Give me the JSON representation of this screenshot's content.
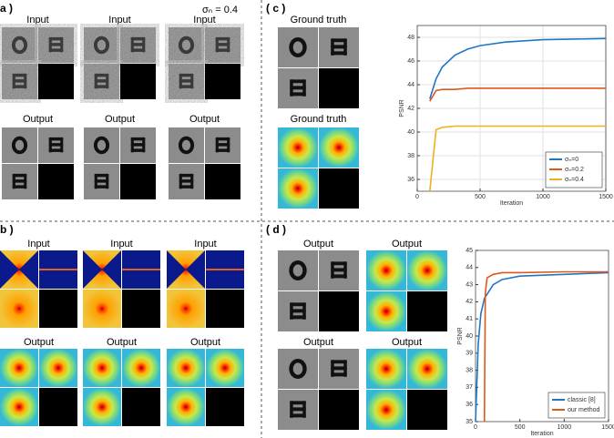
{
  "panels": [
    {
      "label": "a )",
      "note": "σₙ = 0.4",
      "top_titles": [
        "Input",
        "Input",
        "Input"
      ],
      "bottom_titles": [
        "Output",
        "Output",
        "Output"
      ]
    },
    {
      "label": "b )",
      "top_titles": [
        "Input",
        "Input",
        "Input"
      ],
      "bottom_titles": [
        "Output",
        "Output",
        "Output"
      ]
    },
    {
      "label": "( c )",
      "top_titles": [
        "Ground truth"
      ],
      "bottom_titles": [
        "Ground truth"
      ]
    },
    {
      "label": "( d )",
      "top_titles": [
        "Output",
        "Output"
      ],
      "bottom_titles": [
        "Output",
        "Output"
      ]
    }
  ],
  "chart_data": [
    {
      "type": "line",
      "xlabel": "Iteration",
      "ylabel": "PSNR",
      "xlim": [
        0,
        1500
      ],
      "xticks": [
        0,
        500,
        1000,
        1500
      ],
      "ylim": [
        35,
        49
      ],
      "yticks": [
        36,
        38,
        40,
        42,
        44,
        46,
        48
      ],
      "grid": true,
      "legend": "lower right",
      "series": [
        {
          "name": "σₙ=0",
          "color": "#1f77c4",
          "x": [
            100,
            150,
            200,
            300,
            400,
            500,
            700,
            1000,
            1500
          ],
          "values": [
            42.8,
            44.5,
            45.5,
            46.5,
            47.0,
            47.3,
            47.6,
            47.8,
            47.9
          ]
        },
        {
          "name": "σₙ=0.2",
          "color": "#e0561c",
          "x": [
            100,
            150,
            200,
            300,
            400,
            500,
            700,
            1000,
            1500
          ],
          "values": [
            42.6,
            43.5,
            43.6,
            43.6,
            43.7,
            43.7,
            43.7,
            43.7,
            43.7
          ]
        },
        {
          "name": "σₙ=0.4",
          "color": "#edb120",
          "x": [
            100,
            150,
            200,
            300,
            400,
            500,
            700,
            1000,
            1500
          ],
          "values": [
            35,
            40.2,
            40.4,
            40.5,
            40.5,
            40.5,
            40.5,
            40.5,
            40.5
          ]
        }
      ]
    },
    {
      "type": "line",
      "xlabel": "Iteration",
      "ylabel": "PSNR",
      "xlim": [
        0,
        1500
      ],
      "xticks": [
        0,
        500,
        1000,
        1500
      ],
      "ylim": [
        35,
        45
      ],
      "yticks": [
        35,
        36,
        37,
        38,
        39,
        40,
        41,
        42,
        43,
        44,
        45
      ],
      "grid": false,
      "legend": "lower right",
      "series": [
        {
          "name": "classic [8]",
          "color": "#1f77c4",
          "x": [
            0,
            30,
            60,
            100,
            200,
            300,
            500,
            1000,
            1500
          ],
          "values": [
            35,
            39.5,
            41.3,
            42.2,
            43.0,
            43.3,
            43.5,
            43.6,
            43.7
          ]
        },
        {
          "name": "our method",
          "color": "#e0561c",
          "x": [
            100,
            110,
            130,
            200,
            300,
            500,
            1000,
            1500
          ],
          "values": [
            35,
            42.5,
            43.4,
            43.6,
            43.7,
            43.7,
            43.75,
            43.75
          ]
        }
      ]
    }
  ]
}
